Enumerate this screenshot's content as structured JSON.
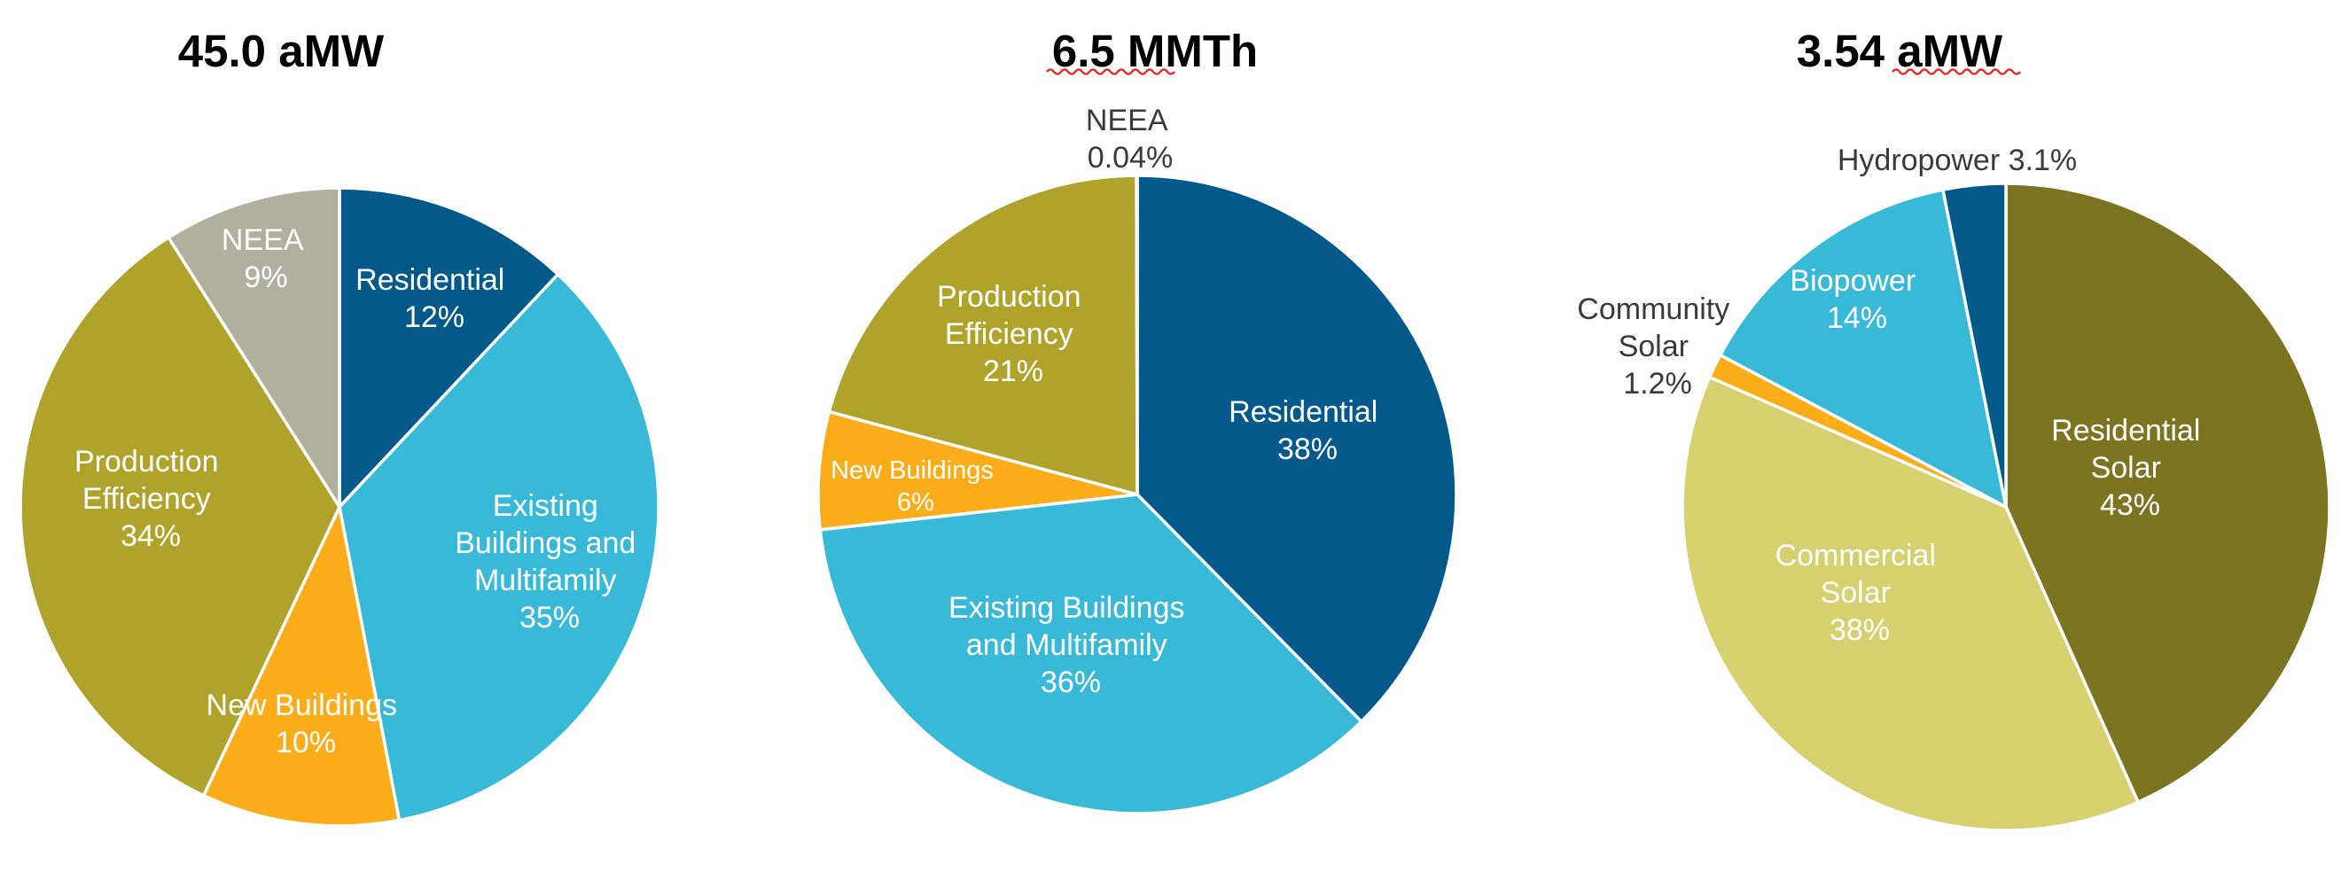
{
  "chart_data": [
    {
      "type": "pie",
      "title": "45.0 aMW",
      "slices": [
        {
          "label": "Residential",
          "value_label": "12%",
          "value": 12,
          "color": "#02598a",
          "text_color": "#ffffff"
        },
        {
          "label": "Existing Buildings and Multifamily",
          "value_label": "35%",
          "value": 35,
          "color": "#39b9d8",
          "text_color": "#ffffff"
        },
        {
          "label": "New Buildings",
          "value_label": "10%",
          "value": 10,
          "color": "#fbad19",
          "text_color": "#ffffff"
        },
        {
          "label": "Production Efficiency",
          "value_label": "34%",
          "value": 34,
          "color": "#b0a32b",
          "text_color": "#ffffff"
        },
        {
          "label": "NEEA",
          "value_label": "9%",
          "value": 9,
          "color": "#b1b09f",
          "text_color": "#ffffff"
        }
      ]
    },
    {
      "type": "pie",
      "title": "6.5 MMTh",
      "slices": [
        {
          "label": "Residential",
          "value_label": "38%",
          "value": 38,
          "color": "#02598a",
          "text_color": "#ffffff"
        },
        {
          "label": "Existing Buildings and Multifamily",
          "value_label": "36%",
          "value": 36,
          "color": "#39b9d8",
          "text_color": "#ffffff"
        },
        {
          "label": "New Buildings",
          "value_label": "6%",
          "value": 6,
          "color": "#fbad19",
          "text_color": "#ffffff"
        },
        {
          "label": "Production Efficiency",
          "value_label": "21%",
          "value": 21,
          "color": "#b0a32b",
          "text_color": "#ffffff"
        },
        {
          "label": "NEEA",
          "value_label": "0.04%",
          "value": 0.04,
          "color": "#b1b09f",
          "text_color": "#3a3a3a"
        }
      ]
    },
    {
      "type": "pie",
      "title": "3.54 aMW",
      "slices": [
        {
          "label": "Residential Solar",
          "value_label": "43%",
          "value": 43,
          "color": "#7c7421",
          "text_color": "#ffffff"
        },
        {
          "label": "Commercial Solar",
          "value_label": "38%",
          "value": 38,
          "color": "#d6d06e",
          "text_color": "#ffffff"
        },
        {
          "label": "Community Solar",
          "value_label": "1.2%",
          "value": 1.2,
          "color": "#fbad19",
          "text_color": "#3a3a3a"
        },
        {
          "label": "Biopower",
          "value_label": "14%",
          "value": 14,
          "color": "#39b9d8",
          "text_color": "#ffffff"
        },
        {
          "label": "Hydropower",
          "value_label": "3.1%",
          "value": 3.1,
          "color": "#02598a",
          "text_color": "#3a3a3a"
        }
      ]
    }
  ]
}
